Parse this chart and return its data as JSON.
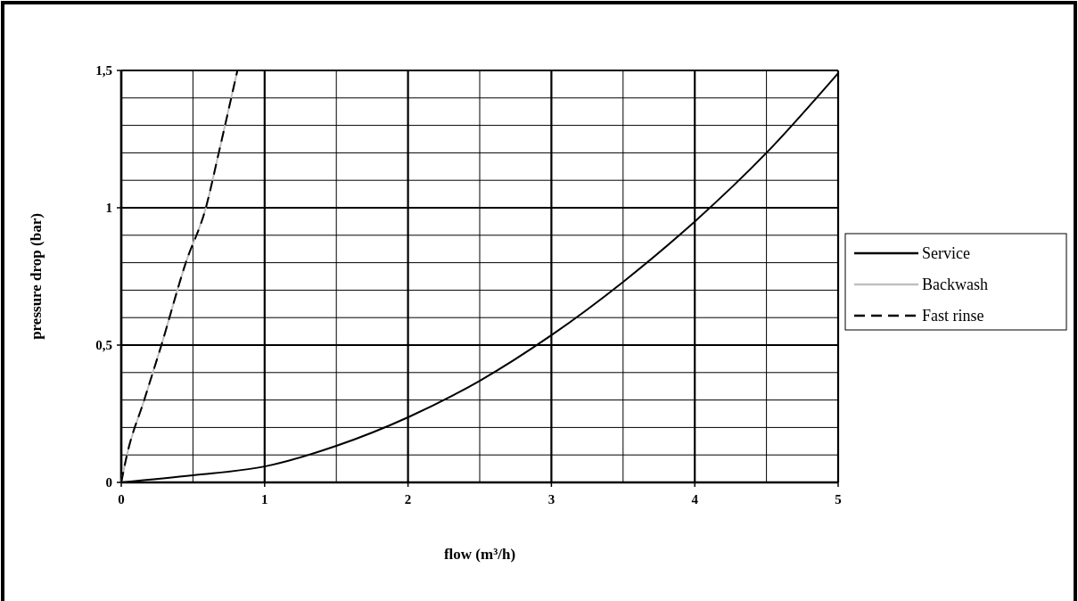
{
  "chart_data": {
    "type": "line",
    "xlabel": "flow (m³/h)",
    "ylabel": "pressure drop (bar)",
    "xlim": [
      0,
      5
    ],
    "xticks": [
      0,
      {
        "value": 0.5,
        "label": null
      },
      1,
      {
        "value": 1.5,
        "label": null
      },
      2,
      {
        "value": 2.5,
        "label": null
      },
      3,
      {
        "value": 3.5,
        "label": null
      },
      4,
      {
        "value": 4.5,
        "label": null
      },
      5
    ],
    "ylim": [
      0,
      1.5
    ],
    "yticks": [
      0,
      {
        "value": 0.1,
        "label": null
      },
      {
        "value": 0.2,
        "label": null
      },
      {
        "value": 0.3,
        "label": null
      },
      {
        "value": 0.4,
        "label": null
      },
      {
        "value": 0.5,
        "label": "0,5"
      },
      {
        "value": 0.6,
        "label": null
      },
      {
        "value": 0.7,
        "label": null
      },
      {
        "value": 0.8,
        "label": null
      },
      {
        "value": 0.9,
        "label": null
      },
      1,
      {
        "value": 1.1,
        "label": null
      },
      {
        "value": 1.2,
        "label": null
      },
      {
        "value": 1.3,
        "label": null
      },
      {
        "value": 1.4,
        "label": null
      },
      {
        "value": 1.5,
        "label": "1,5"
      }
    ],
    "grid": true,
    "legend": "right",
    "marker": "none",
    "series": [
      {
        "name": "Service",
        "color": "#000000",
        "line_style": "solid",
        "x": [
          0,
          0.5,
          1,
          1.5,
          2,
          2.5,
          3,
          3.5,
          4,
          4.5,
          5
        ],
        "values": [
          0,
          0.026,
          0.058,
          0.133,
          0.237,
          0.37,
          0.536,
          0.73,
          0.95,
          1.2,
          1.49
        ]
      },
      {
        "name": "Backwash",
        "color": "#c0c0c0",
        "line_style": "solid",
        "x": [
          0,
          0.037,
          0.16,
          0.28,
          0.45,
          0.59,
          0.68,
          0.81
        ],
        "values": [
          0,
          0.094,
          0.3,
          0.5,
          0.8,
          1,
          1.2,
          1.5
        ]
      },
      {
        "name": "Fast rinse",
        "color": "#000000",
        "line_style": "dashed",
        "x": [
          0,
          0.037,
          0.16,
          0.28,
          0.45,
          0.59,
          0.68,
          0.81
        ],
        "values": [
          0,
          0.094,
          0.3,
          0.5,
          0.8,
          1,
          1.2,
          1.5
        ]
      }
    ]
  }
}
